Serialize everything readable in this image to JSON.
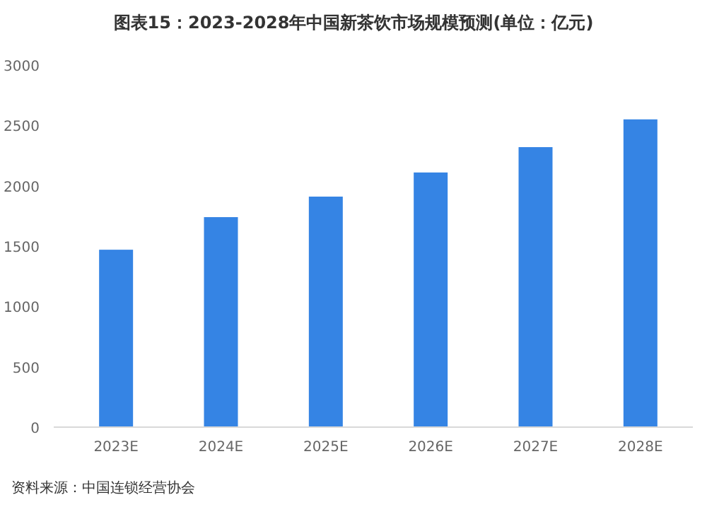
{
  "chart_data": {
    "type": "bar",
    "title": "图表15：2023-2028年中国新茶饮市场规模预测(单位：亿元)",
    "categories": [
      "2023E",
      "2024E",
      "2025E",
      "2026E",
      "2027E",
      "2028E"
    ],
    "values": [
      1470,
      1740,
      1910,
      2110,
      2320,
      2550
    ],
    "color": "#3584e4",
    "ylim": [
      0,
      3000
    ],
    "yticks": [
      0,
      500,
      1000,
      1500,
      2000,
      2500,
      3000
    ],
    "grid": false,
    "annotations": [
      "资料来源：中国连锁经营协会"
    ]
  }
}
